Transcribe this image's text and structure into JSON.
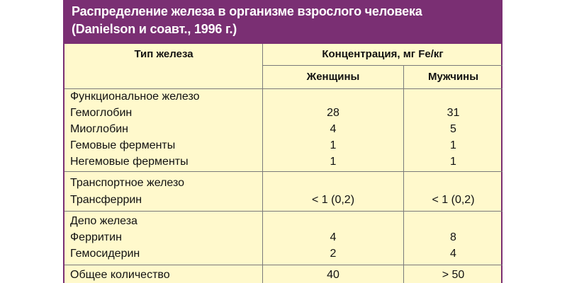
{
  "title": {
    "line1": "Распределение железа в организме взрослого человека",
    "line2": "(Danielson и соавт., 1996 г.)"
  },
  "header": {
    "type_label": "Тип железа",
    "concentration_label": "Концентрация, мг Fe/кг",
    "women_label": "Женщины",
    "men_label": "Мужчины"
  },
  "groups": [
    {
      "rows": [
        {
          "label": "Функциональное железо",
          "women": "",
          "men": ""
        },
        {
          "label": "Гемоглобин",
          "women": "28",
          "men": "31"
        },
        {
          "label": "Миоглобин",
          "women": "4",
          "men": "5"
        },
        {
          "label": "Гемовые ферменты",
          "women": "1",
          "men": "1"
        },
        {
          "label": "Негемовые ферменты",
          "women": "1",
          "men": "1"
        }
      ]
    },
    {
      "rows": [
        {
          "label": "Транспортное железо",
          "women": "",
          "men": ""
        },
        {
          "label": "Трансферрин",
          "women": "< 1 (0,2)",
          "men": "< 1 (0,2)"
        }
      ]
    },
    {
      "rows": [
        {
          "label": "Депо железа",
          "women": "",
          "men": ""
        },
        {
          "label": "Ферритин",
          "women": "4",
          "men": "8"
        },
        {
          "label": "Гемосидерин",
          "women": "2",
          "men": "4"
        }
      ]
    },
    {
      "rows": [
        {
          "label": "Общее количество",
          "women": "40",
          "men": "> 50"
        }
      ]
    }
  ],
  "colors": {
    "title_background": "#7a2f73",
    "table_background": "#fff9cc"
  }
}
